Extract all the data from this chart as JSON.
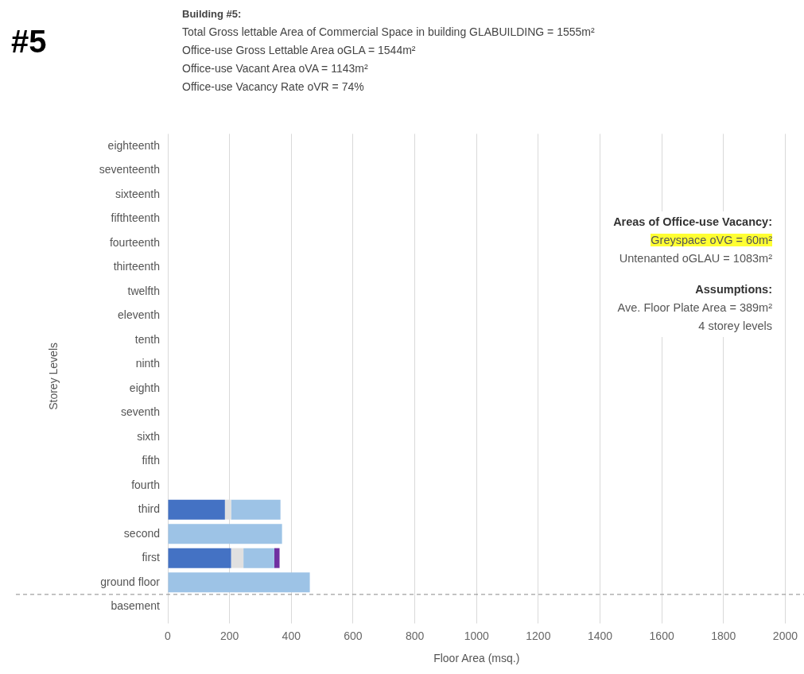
{
  "chart_data": {
    "type": "bar",
    "orientation": "horizontal",
    "stacked": true,
    "title": "#5",
    "subtitle": "Building #5:",
    "xlabel": "Floor Area (msq.)",
    "ylabel": "Storey Levels",
    "categories": [
      "eighteenth",
      "seventeenth",
      "sixteenth",
      "fifthteenth",
      "fourteenth",
      "thirteenth",
      "twelfth",
      "eleventh",
      "tenth",
      "ninth",
      "eighth",
      "seventh",
      "sixth",
      "fifth",
      "fourth",
      "third",
      "second",
      "first",
      "ground floor",
      "basement"
    ],
    "series": [
      {
        "color": "#4472c4",
        "values": [
          null,
          null,
          null,
          null,
          null,
          null,
          null,
          null,
          null,
          null,
          null,
          null,
          null,
          null,
          null,
          185,
          null,
          205,
          null,
          null
        ]
      },
      {
        "color": "#e0e0e0",
        "values": [
          null,
          null,
          null,
          null,
          null,
          null,
          null,
          null,
          null,
          null,
          null,
          null,
          null,
          null,
          null,
          20,
          null,
          40,
          null,
          null
        ]
      },
      {
        "color": "#9dc3e6",
        "values": [
          null,
          null,
          null,
          null,
          null,
          null,
          null,
          null,
          null,
          null,
          null,
          null,
          null,
          null,
          null,
          160,
          370,
          100,
          460,
          null
        ]
      },
      {
        "color": "#7030a0",
        "values": [
          null,
          null,
          null,
          null,
          null,
          null,
          null,
          null,
          null,
          null,
          null,
          null,
          null,
          null,
          null,
          null,
          null,
          17,
          null,
          null
        ]
      }
    ],
    "ref_lines": [
      {
        "axis": "y",
        "value": "basement",
        "color": "#888888",
        "line_style": "dashed"
      }
    ],
    "xlim": [
      0,
      2000
    ],
    "xticks": [
      0,
      200,
      400,
      600,
      800,
      1000,
      1200,
      1400,
      1600,
      1800,
      2000
    ],
    "grid": "x",
    "legend": false,
    "annotations": [
      "Total Gross lettable Area of Commercial Space in building GLABUILDING  = 1555m²",
      "Office-use Gross Lettable Area oGLA = 1544m²",
      "Office-use Vacant Area oVA = 1143m²",
      "Office-use Vacancy Rate oVR = 74%",
      "Areas of Office-use Vacancy:",
      "Greyspace oVG = 60m²",
      "Untenanted oGLAU = 1083m²",
      "Assumptions:",
      "Ave. Floor Plate Area = 389m²",
      "4 storey levels"
    ]
  }
}
